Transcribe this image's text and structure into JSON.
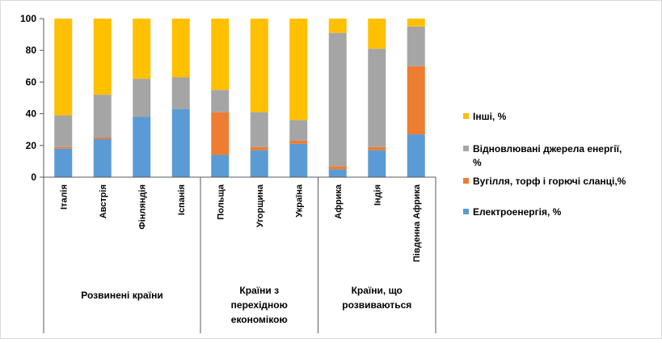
{
  "chart_data": {
    "type": "bar",
    "stacked": true,
    "ylim": [
      0,
      100
    ],
    "yticks": [
      0,
      20,
      40,
      60,
      80,
      100
    ],
    "grid": false,
    "legend_position": "right",
    "categories": [
      "Італія",
      "Австрія",
      "Фінляндія",
      "Іспанія",
      "Польща",
      "Угорщина",
      "Україна",
      "Африка",
      "Індія",
      "Південна Африка"
    ],
    "groups": [
      {
        "label_lines": [
          "Розвинені країни"
        ],
        "start": 0,
        "end": 3
      },
      {
        "label_lines": [
          "Країни з",
          "перехідною",
          "економікою"
        ],
        "start": 4,
        "end": 6
      },
      {
        "label_lines": [
          "Країни, що",
          "розвиваються"
        ],
        "start": 7,
        "end": 9
      }
    ],
    "series": [
      {
        "name": "Електроенергія, %",
        "color": "#5B9BD5",
        "values": [
          18,
          24,
          38,
          43,
          14,
          17,
          21,
          5,
          17,
          27
        ]
      },
      {
        "name": "Вугілля, торф і горючі сланці,%",
        "color": "#ED7D31",
        "values": [
          1,
          1,
          0,
          0,
          27,
          2,
          2,
          2,
          2,
          43
        ]
      },
      {
        "name": "Відновлювані джерела енергії, %",
        "color": "#A5A5A5",
        "values": [
          20,
          27,
          24,
          20,
          14,
          22,
          13,
          84,
          62,
          25
        ]
      },
      {
        "name": "Інші, %",
        "color": "#FFC000",
        "values": [
          61,
          48,
          38,
          37,
          45,
          59,
          64,
          9,
          19,
          5
        ]
      }
    ],
    "legend_order": [
      3,
      2,
      1,
      0
    ],
    "legend_label_lines": [
      [
        "Інші, %"
      ],
      [
        "Відновлювані джерела енергії,",
        "%"
      ],
      [
        "Вугілля, торф і горючі сланці,%"
      ],
      [
        "Електроенергія, %"
      ]
    ]
  }
}
